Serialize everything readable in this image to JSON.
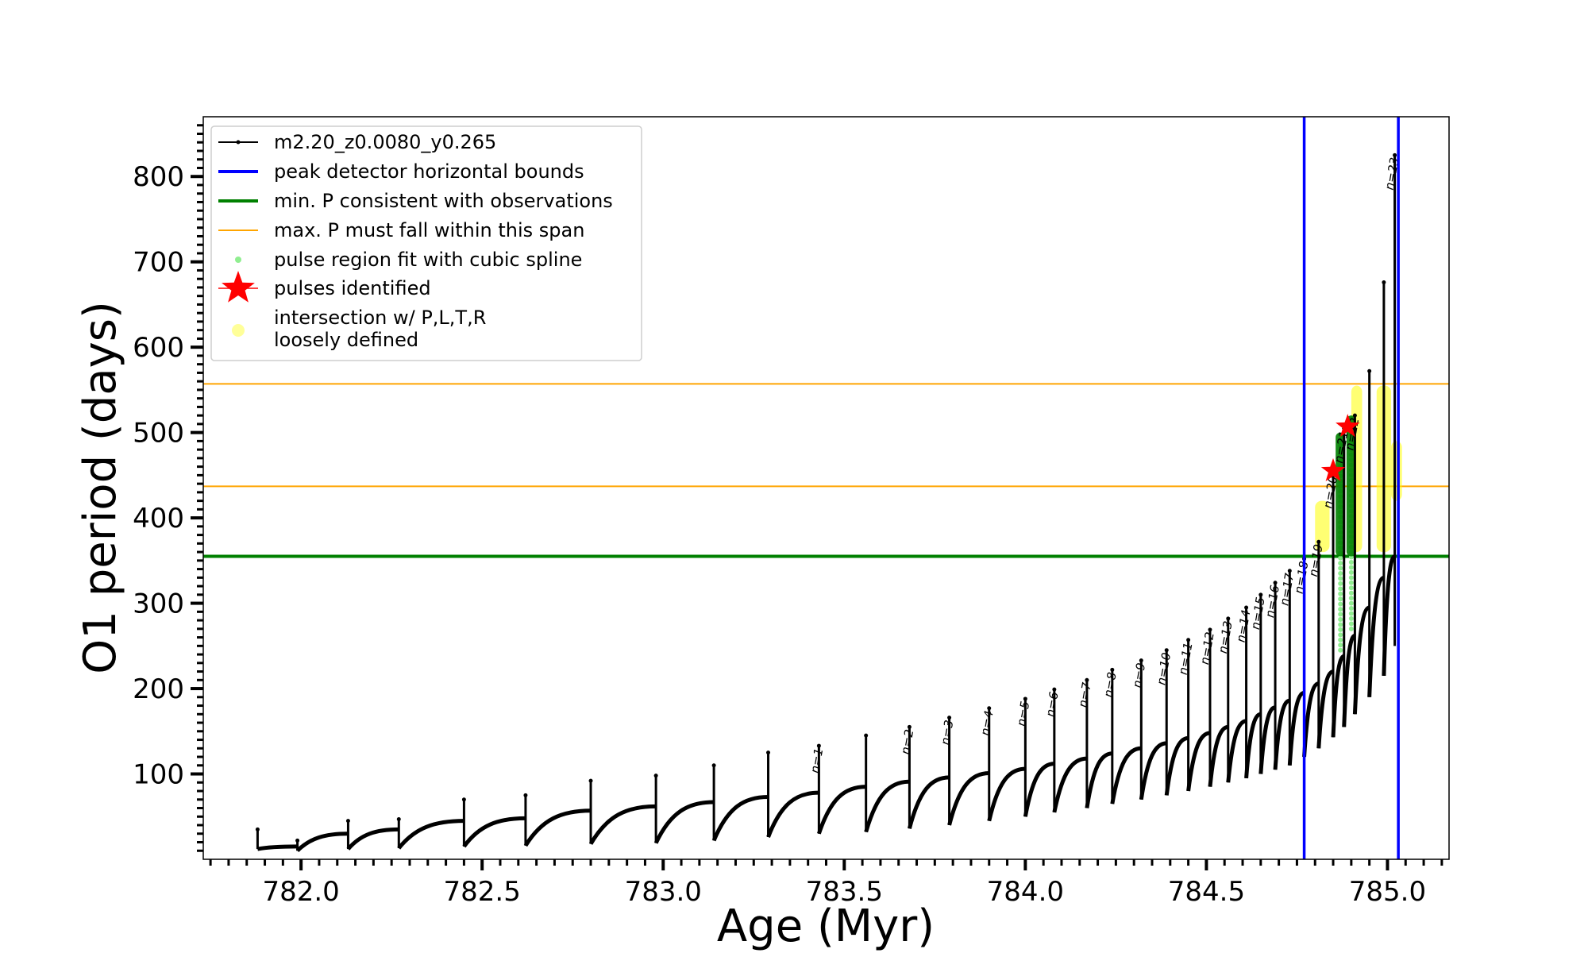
{
  "chart_data": {
    "type": "line",
    "title": "",
    "xlabel": "Age (Myr)",
    "ylabel": "O1 period (days)",
    "xlim": [
      781.73,
      785.17
    ],
    "ylim": [
      0,
      870
    ],
    "x_ticks": [
      782.0,
      782.5,
      783.0,
      783.5,
      784.0,
      784.5,
      785.0
    ],
    "x_tick_labels": [
      "782.0",
      "782.5",
      "783.0",
      "783.5",
      "784.0",
      "784.5",
      "785.0"
    ],
    "y_ticks": [
      100,
      200,
      300,
      400,
      500,
      600,
      700,
      800
    ],
    "y_tick_labels": [
      "100",
      "200",
      "300",
      "400",
      "500",
      "600",
      "700",
      "800"
    ],
    "grid": false,
    "legend_position": "top-left",
    "legend": [
      {
        "label": "m2.20_z0.0080_y0.265",
        "kind": "line-dot",
        "color": "#000000"
      },
      {
        "label": "peak detector horizontal bounds",
        "kind": "line",
        "color": "#0000ff"
      },
      {
        "label": "min. P consistent with observations",
        "kind": "line",
        "color": "#008000"
      },
      {
        "label": "max. P must fall within this span",
        "kind": "thin-line",
        "color": "#ffa500"
      },
      {
        "label": "pulse region fit with cubic spline",
        "kind": "small-dot",
        "color": "#90ee90"
      },
      {
        "label": "pulses identified",
        "kind": "star",
        "color": "#ff0000"
      },
      {
        "label": "intersection w/ P,L,T,R",
        "label2": "loosely defined",
        "kind": "big-dot",
        "color": "#ffff99"
      }
    ],
    "peak_detector_bounds_x": [
      784.77,
      785.03
    ],
    "min_period_line_y": 355,
    "max_period_span_y": [
      437,
      557
    ],
    "series": [
      {
        "name": "m2.20_z0.0080_y0.265",
        "color": "#000000",
        "pulses": [
          {
            "x": 781.88,
            "peak": 35,
            "min": 12,
            "pre": 0
          },
          {
            "x": 781.99,
            "peak": 22,
            "min": 10,
            "pre": 15
          },
          {
            "x": 782.13,
            "peak": 45,
            "min": 12,
            "pre": 30
          },
          {
            "x": 782.27,
            "peak": 47,
            "min": 13,
            "pre": 35
          },
          {
            "x": 782.45,
            "peak": 70,
            "min": 15,
            "pre": 45
          },
          {
            "x": 782.62,
            "peak": 75,
            "min": 16,
            "pre": 48
          },
          {
            "x": 782.8,
            "peak": 92,
            "min": 18,
            "pre": 57
          },
          {
            "x": 782.98,
            "peak": 98,
            "min": 19,
            "pre": 62
          },
          {
            "x": 783.14,
            "peak": 110,
            "min": 22,
            "pre": 67
          },
          {
            "x": 783.29,
            "peak": 125,
            "min": 26,
            "pre": 73
          },
          {
            "x": 783.43,
            "peak": 133,
            "min": 30,
            "pre": 78,
            "label": "n=1"
          },
          {
            "x": 783.56,
            "peak": 145,
            "min": 32,
            "pre": 85
          },
          {
            "x": 783.68,
            "peak": 155,
            "min": 36,
            "pre": 91,
            "label": "n=2"
          },
          {
            "x": 783.79,
            "peak": 166,
            "min": 40,
            "pre": 96,
            "label": "n=3"
          },
          {
            "x": 783.9,
            "peak": 177,
            "min": 45,
            "pre": 101,
            "label": "n=4"
          },
          {
            "x": 784.0,
            "peak": 188,
            "min": 50,
            "pre": 106,
            "label": "n=5"
          },
          {
            "x": 784.08,
            "peak": 199,
            "min": 55,
            "pre": 112,
            "label": "n=6"
          },
          {
            "x": 784.17,
            "peak": 210,
            "min": 60,
            "pre": 118,
            "label": "n=7"
          },
          {
            "x": 784.24,
            "peak": 222,
            "min": 65,
            "pre": 124,
            "label": "n=8"
          },
          {
            "x": 784.32,
            "peak": 233,
            "min": 70,
            "pre": 130,
            "label": "n=9"
          },
          {
            "x": 784.39,
            "peak": 245,
            "min": 75,
            "pre": 136,
            "label": "n=10"
          },
          {
            "x": 784.45,
            "peak": 257,
            "min": 80,
            "pre": 142,
            "label": "n=11"
          },
          {
            "x": 784.51,
            "peak": 269,
            "min": 85,
            "pre": 148,
            "label": "n=12"
          },
          {
            "x": 784.56,
            "peak": 282,
            "min": 90,
            "pre": 155,
            "label": "n=13"
          },
          {
            "x": 784.61,
            "peak": 295,
            "min": 95,
            "pre": 162,
            "label": "n=14"
          },
          {
            "x": 784.65,
            "peak": 310,
            "min": 100,
            "pre": 170,
            "label": "n=15"
          },
          {
            "x": 784.69,
            "peak": 324,
            "min": 105,
            "pre": 178,
            "label": "n=16"
          },
          {
            "x": 784.73,
            "peak": 338,
            "min": 110,
            "pre": 186,
            "label": "n=17"
          },
          {
            "x": 784.77,
            "peak": 352,
            "min": 120,
            "pre": 195,
            "label": "n=18"
          },
          {
            "x": 784.81,
            "peak": 372,
            "min": 130,
            "pre": 206,
            "label": "n=19"
          },
          {
            "x": 784.85,
            "peak": 452,
            "min": 143,
            "pre": 220,
            "label": "n=20"
          },
          {
            "x": 784.88,
            "peak": 505,
            "min": 155,
            "pre": 238,
            "label": "n=21"
          },
          {
            "x": 784.91,
            "peak": 520,
            "min": 170,
            "pre": 262,
            "label": "n=22"
          },
          {
            "x": 784.95,
            "peak": 572,
            "min": 190,
            "pre": 295
          },
          {
            "x": 784.99,
            "peak": 676,
            "min": 215,
            "pre": 330
          },
          {
            "x": 785.02,
            "peak": 825,
            "min": 250,
            "pre": 355,
            "label": "n=23"
          }
        ]
      }
    ],
    "spline_fit_regions": [
      {
        "x": 784.87,
        "y_low": 245,
        "y_high": 500
      },
      {
        "x": 784.9,
        "y_low": 270,
        "y_high": 520
      }
    ],
    "pulses_identified": [
      {
        "x": 784.85,
        "y": 455
      },
      {
        "x": 784.89,
        "y": 507
      }
    ],
    "intersection_regions": [
      {
        "x0": 784.8,
        "x1": 784.84,
        "y0": 360,
        "y1": 420
      },
      {
        "x0": 784.9,
        "x1": 784.93,
        "y0": 360,
        "y1": 555
      },
      {
        "x0": 784.97,
        "x1": 785.01,
        "y0": 360,
        "y1": 555
      },
      {
        "x0": 785.01,
        "x1": 785.04,
        "y0": 420,
        "y1": 490
      }
    ]
  }
}
